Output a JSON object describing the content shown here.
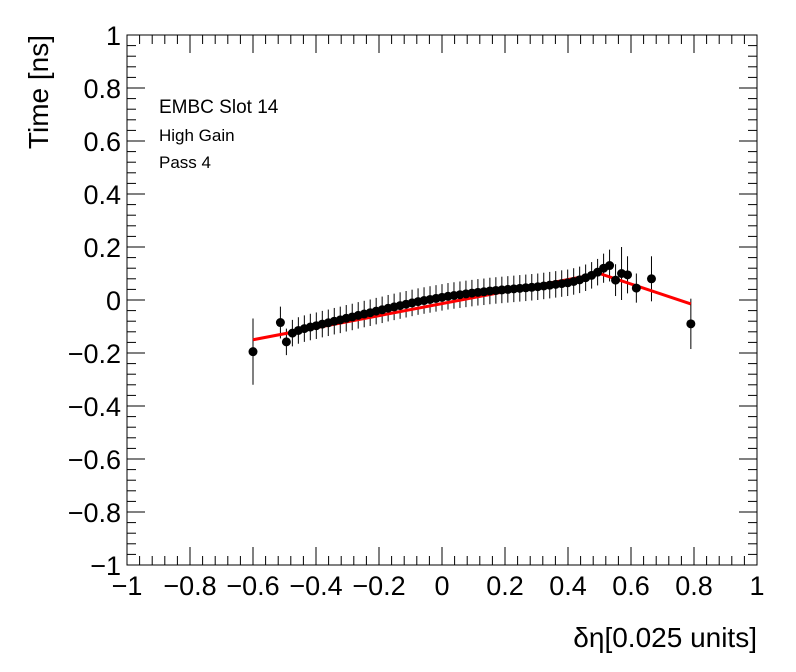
{
  "chart_data": {
    "type": "scatter",
    "xlabel": "δη[0.025 units]",
    "ylabel": "Time [ns]",
    "xlim": [
      -1,
      1
    ],
    "ylim": [
      -1,
      1
    ],
    "x_ticks": [
      -1,
      -0.8,
      -0.6,
      -0.4,
      -0.2,
      0,
      0.2,
      0.4,
      0.6,
      0.8,
      1
    ],
    "y_ticks": [
      -1,
      -0.8,
      -0.6,
      -0.4,
      -0.2,
      0,
      0.2,
      0.4,
      0.6,
      0.8,
      1
    ],
    "x_tick_labels": [
      "−1",
      "−0.8",
      "−0.6",
      "−0.4",
      "−0.2",
      "0",
      "0.2",
      "0.4",
      "0.6",
      "0.8",
      "1"
    ],
    "y_tick_labels": [
      "−1",
      "−0.8",
      "−0.6",
      "−0.4",
      "−0.2",
      "0",
      "0.2",
      "0.4",
      "0.6",
      "0.8",
      "1"
    ],
    "grid": false,
    "annotations": [
      "EMBC Slot 14",
      "High Gain",
      "Pass 4"
    ],
    "series": [
      {
        "kind": "points_with_errors",
        "color": "#000000",
        "points": [
          {
            "x": -0.6,
            "y": -0.195,
            "err": 0.125
          },
          {
            "x": -0.513,
            "y": -0.085,
            "err": 0.06
          },
          {
            "x": -0.494,
            "y": -0.158,
            "err": 0.05
          },
          {
            "x": -0.475,
            "y": -0.125,
            "err": 0.05
          },
          {
            "x": -0.456,
            "y": -0.115,
            "err": 0.05
          },
          {
            "x": -0.437,
            "y": -0.108,
            "err": 0.05
          },
          {
            "x": -0.418,
            "y": -0.102,
            "err": 0.05
          },
          {
            "x": -0.399,
            "y": -0.097,
            "err": 0.05
          },
          {
            "x": -0.38,
            "y": -0.091,
            "err": 0.05
          },
          {
            "x": -0.361,
            "y": -0.086,
            "err": 0.05
          },
          {
            "x": -0.342,
            "y": -0.08,
            "err": 0.05
          },
          {
            "x": -0.323,
            "y": -0.075,
            "err": 0.05
          },
          {
            "x": -0.304,
            "y": -0.069,
            "err": 0.05
          },
          {
            "x": -0.285,
            "y": -0.064,
            "err": 0.05
          },
          {
            "x": -0.266,
            "y": -0.058,
            "err": 0.05
          },
          {
            "x": -0.247,
            "y": -0.053,
            "err": 0.05
          },
          {
            "x": -0.228,
            "y": -0.048,
            "err": 0.05
          },
          {
            "x": -0.209,
            "y": -0.042,
            "err": 0.05
          },
          {
            "x": -0.19,
            "y": -0.037,
            "err": 0.05
          },
          {
            "x": -0.171,
            "y": -0.031,
            "err": 0.05
          },
          {
            "x": -0.152,
            "y": -0.026,
            "err": 0.05
          },
          {
            "x": -0.133,
            "y": -0.021,
            "err": 0.05
          },
          {
            "x": -0.114,
            "y": -0.016,
            "err": 0.05
          },
          {
            "x": -0.095,
            "y": -0.011,
            "err": 0.05
          },
          {
            "x": -0.076,
            "y": -0.006,
            "err": 0.05
          },
          {
            "x": -0.057,
            "y": -0.002,
            "err": 0.05
          },
          {
            "x": -0.038,
            "y": 0.002,
            "err": 0.05
          },
          {
            "x": -0.019,
            "y": 0.006,
            "err": 0.05
          },
          {
            "x": 0.0,
            "y": 0.01,
            "err": 0.05
          },
          {
            "x": 0.019,
            "y": 0.014,
            "err": 0.05
          },
          {
            "x": 0.038,
            "y": 0.017,
            "err": 0.05
          },
          {
            "x": 0.057,
            "y": 0.02,
            "err": 0.05
          },
          {
            "x": 0.076,
            "y": 0.023,
            "err": 0.05
          },
          {
            "x": 0.095,
            "y": 0.026,
            "err": 0.05
          },
          {
            "x": 0.114,
            "y": 0.029,
            "err": 0.05
          },
          {
            "x": 0.133,
            "y": 0.031,
            "err": 0.05
          },
          {
            "x": 0.152,
            "y": 0.034,
            "err": 0.05
          },
          {
            "x": 0.171,
            "y": 0.036,
            "err": 0.05
          },
          {
            "x": 0.19,
            "y": 0.038,
            "err": 0.05
          },
          {
            "x": 0.209,
            "y": 0.04,
            "err": 0.05
          },
          {
            "x": 0.228,
            "y": 0.042,
            "err": 0.05
          },
          {
            "x": 0.247,
            "y": 0.044,
            "err": 0.05
          },
          {
            "x": 0.266,
            "y": 0.046,
            "err": 0.05
          },
          {
            "x": 0.285,
            "y": 0.048,
            "err": 0.05
          },
          {
            "x": 0.304,
            "y": 0.05,
            "err": 0.05
          },
          {
            "x": 0.323,
            "y": 0.053,
            "err": 0.05
          },
          {
            "x": 0.342,
            "y": 0.056,
            "err": 0.05
          },
          {
            "x": 0.361,
            "y": 0.059,
            "err": 0.05
          },
          {
            "x": 0.38,
            "y": 0.062,
            "err": 0.05
          },
          {
            "x": 0.399,
            "y": 0.065,
            "err": 0.05
          },
          {
            "x": 0.418,
            "y": 0.07,
            "err": 0.05
          },
          {
            "x": 0.437,
            "y": 0.076,
            "err": 0.05
          },
          {
            "x": 0.456,
            "y": 0.084,
            "err": 0.05
          },
          {
            "x": 0.475,
            "y": 0.093,
            "err": 0.05
          },
          {
            "x": 0.494,
            "y": 0.105,
            "err": 0.05
          },
          {
            "x": 0.513,
            "y": 0.12,
            "err": 0.055
          },
          {
            "x": 0.532,
            "y": 0.13,
            "err": 0.06
          },
          {
            "x": 0.551,
            "y": 0.075,
            "err": 0.06
          },
          {
            "x": 0.57,
            "y": 0.1,
            "err": 0.1
          },
          {
            "x": 0.589,
            "y": 0.095,
            "err": 0.07
          },
          {
            "x": 0.617,
            "y": 0.045,
            "err": 0.055
          },
          {
            "x": 0.665,
            "y": 0.08,
            "err": 0.085
          },
          {
            "x": 0.79,
            "y": -0.09,
            "err": 0.095
          }
        ]
      },
      {
        "kind": "fit_line",
        "color": "#ff0000",
        "x": [
          -0.6,
          0.5,
          0.79
        ],
        "y": [
          -0.15,
          0.1,
          -0.015
        ]
      }
    ]
  }
}
